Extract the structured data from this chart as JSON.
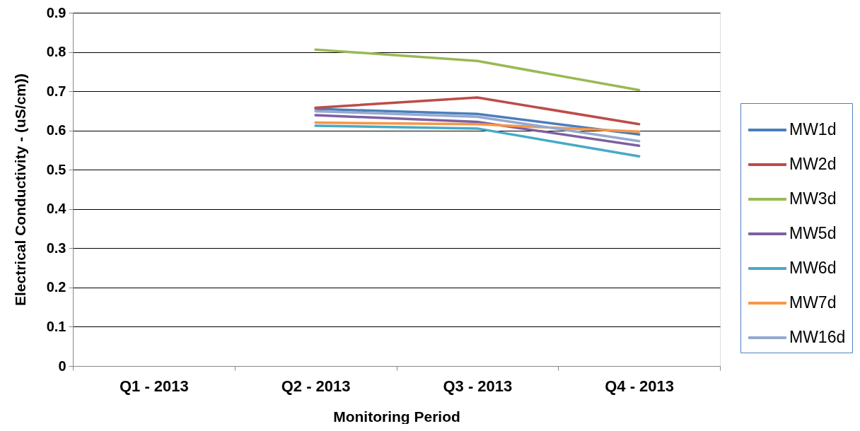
{
  "chart_data": {
    "type": "line",
    "xlabel": "Monitoring Period",
    "ylabel": "Electrical Conductivity - (uS/cm))",
    "categories": [
      "Q1 - 2013",
      "Q2 - 2013",
      "Q3 - 2013",
      "Q4 - 2013"
    ],
    "series": [
      {
        "name": "MW1d",
        "color": "#4a7ebb",
        "values": [
          null,
          0.655,
          0.642,
          0.59
        ]
      },
      {
        "name": "MW2d",
        "color": "#be4b48",
        "values": [
          null,
          0.658,
          0.684,
          0.616
        ]
      },
      {
        "name": "MW3d",
        "color": "#98b954",
        "values": [
          null,
          0.806,
          0.777,
          0.703
        ]
      },
      {
        "name": "MW5d",
        "color": "#7d60a0",
        "values": [
          null,
          0.639,
          0.622,
          0.561
        ]
      },
      {
        "name": "MW6d",
        "color": "#46aac5",
        "values": [
          null,
          0.612,
          0.605,
          0.534
        ]
      },
      {
        "name": "MW7d",
        "color": "#f79646",
        "values": [
          null,
          0.62,
          0.616,
          0.597
        ]
      },
      {
        "name": "MW16d",
        "color": "#95a9d0",
        "values": [
          null,
          0.649,
          0.635,
          0.573
        ]
      }
    ],
    "ylim": [
      0,
      0.9
    ],
    "yticks": [
      0,
      0.1,
      0.2,
      0.3,
      0.4,
      0.5,
      0.6,
      0.7,
      0.8,
      0.9
    ],
    "grid": "y",
    "legend": "right",
    "marker": "none",
    "line_style": "solid"
  }
}
